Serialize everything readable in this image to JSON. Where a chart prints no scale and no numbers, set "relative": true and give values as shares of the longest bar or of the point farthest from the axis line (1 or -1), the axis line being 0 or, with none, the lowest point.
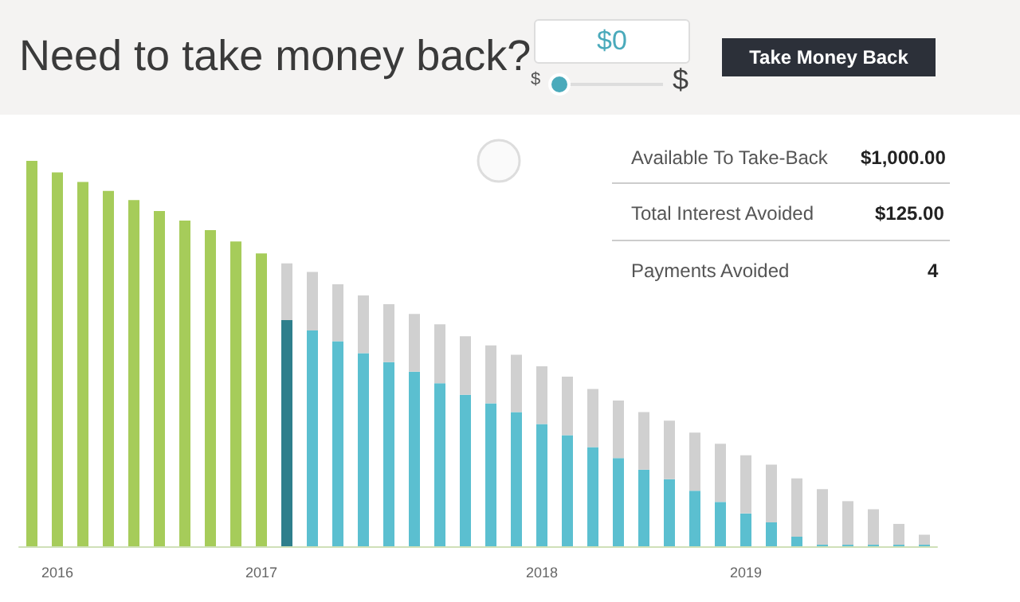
{
  "chart_data": {
    "type": "bar",
    "title": "Need to take money back?",
    "relative": true,
    "stacked": true,
    "categories": [
      null,
      "2016",
      null,
      null,
      null,
      null,
      null,
      null,
      null,
      "2017",
      null,
      null,
      null,
      null,
      null,
      null,
      null,
      null,
      null,
      null,
      "2018",
      null,
      null,
      null,
      null,
      null,
      null,
      null,
      "2019",
      null,
      null,
      null,
      null,
      null,
      null,
      null
    ],
    "series": [
      {
        "color": "#a6cc5a",
        "values": [
          1,
          0.97,
          0.945,
          0.922,
          0.898,
          0.87,
          0.845,
          0.82,
          0.791,
          0.76,
          null,
          null,
          null,
          null,
          null,
          null,
          null,
          null,
          null,
          null,
          null,
          null,
          null,
          null,
          null,
          null,
          null,
          null,
          null,
          null,
          null,
          null,
          null,
          null,
          null,
          null
        ]
      },
      {
        "color": "#5bbfd0",
        "colors": [
          "#a6cc5a",
          "#a6cc5a",
          "#a6cc5a",
          "#a6cc5a",
          "#a6cc5a",
          "#a6cc5a",
          "#a6cc5a",
          "#a6cc5a",
          "#a6cc5a",
          "#a6cc5a",
          "#2e7f8c",
          "#5bbfd0",
          "#5bbfd0",
          "#5bbfd0",
          "#5bbfd0",
          "#5bbfd0",
          "#5bbfd0",
          "#5bbfd0",
          "#5bbfd0",
          "#5bbfd0",
          "#5bbfd0",
          "#5bbfd0",
          "#5bbfd0",
          "#5bbfd0",
          "#5bbfd0",
          "#5bbfd0",
          "#5bbfd0",
          "#5bbfd0",
          "#5bbfd0",
          "#5bbfd0",
          "#5bbfd0",
          "#5bbfd0",
          "#5bbfd0",
          "#5bbfd0",
          "#5bbfd0",
          "#5bbfd0"
        ],
        "values": [
          null,
          null,
          null,
          null,
          null,
          null,
          null,
          null,
          null,
          null,
          0.587,
          0.56,
          0.532,
          0.501,
          0.478,
          0.453,
          0.423,
          0.393,
          0.371,
          0.348,
          0.317,
          0.288,
          0.257,
          0.229,
          0.199,
          0.174,
          0.144,
          0.115,
          0.085,
          0.062,
          0.025,
          0.004,
          0.004,
          0.004,
          0.004,
          0.004
        ]
      },
      {
        "color": "#d0d0d0",
        "values": [
          null,
          null,
          null,
          null,
          null,
          null,
          null,
          null,
          null,
          null,
          0.147,
          0.152,
          0.148,
          0.15,
          0.15,
          0.15,
          0.153,
          0.152,
          0.15,
          0.149,
          0.15,
          0.152,
          0.151,
          0.149,
          0.149,
          0.152,
          0.151,
          0.151,
          0.151,
          0.15,
          0.151,
          0.144,
          0.113,
          0.092,
          0.054,
          0.026
        ]
      }
    ],
    "annotations": [
      "$0",
      "$",
      "$",
      "Take Money Back",
      "Available To Take-Back",
      "$1,000.00",
      "Total Interest Avoided",
      "$125.00",
      "Payments Avoided",
      "4"
    ]
  }
}
